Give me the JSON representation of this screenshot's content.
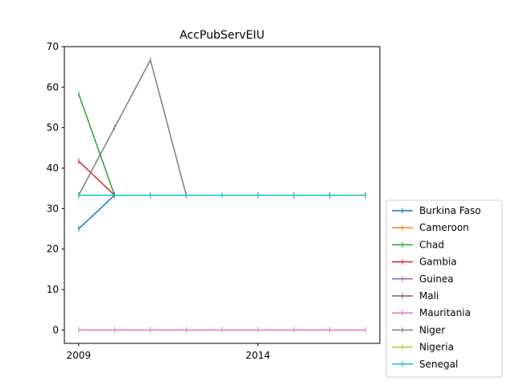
{
  "chart_data": {
    "type": "line",
    "title": "AccPubServEIU",
    "xlabel": "",
    "ylabel": "",
    "x": [
      2009,
      2010,
      2011,
      2012,
      2013,
      2014,
      2015,
      2016,
      2017
    ],
    "xlim": [
      2008.6,
      2017.4
    ],
    "ylim": [
      -3.3,
      70
    ],
    "xticks": [
      2009,
      2014
    ],
    "yticks": [
      0,
      10,
      20,
      30,
      40,
      50,
      60,
      70
    ],
    "grid": false,
    "legend_position": "lower-right-outside",
    "series": [
      {
        "name": "Burkina Faso",
        "color": "#1f77b4",
        "values": [
          25,
          33.3,
          33.3,
          33.3,
          33.3,
          33.3,
          33.3,
          33.3,
          33.3
        ]
      },
      {
        "name": "Cameroon",
        "color": "#ff7f0e",
        "values": [
          33.3,
          33.3,
          33.3,
          33.3,
          33.3,
          33.3,
          33.3,
          33.3,
          33.3
        ]
      },
      {
        "name": "Chad",
        "color": "#2ca02c",
        "values": [
          58.3,
          33.3,
          33.3,
          33.3,
          33.3,
          33.3,
          33.3,
          33.3,
          33.3
        ]
      },
      {
        "name": "Gambia",
        "color": "#d62728",
        "values": [
          41.7,
          33.3,
          33.3,
          33.3,
          33.3,
          33.3,
          33.3,
          33.3,
          33.3
        ]
      },
      {
        "name": "Guinea",
        "color": "#9467bd",
        "values": [
          33.3,
          33.3,
          33.3,
          33.3,
          33.3,
          33.3,
          33.3,
          33.3,
          33.3
        ]
      },
      {
        "name": "Mali",
        "color": "#8c564b",
        "values": [
          33.3,
          33.3,
          33.3,
          33.3,
          33.3,
          33.3,
          33.3,
          33.3,
          33.3
        ]
      },
      {
        "name": "Mauritania",
        "color": "#e377c2",
        "values": [
          0,
          0,
          0,
          0,
          0,
          0,
          0,
          0,
          0
        ]
      },
      {
        "name": "Niger",
        "color": "#7f7f7f",
        "values": [
          33.3,
          50,
          66.7,
          33.3,
          33.3,
          33.3,
          33.3,
          33.3,
          33.3
        ]
      },
      {
        "name": "Nigeria",
        "color": "#bcbd22",
        "values": [
          33.3,
          33.3,
          33.3,
          33.3,
          33.3,
          33.3,
          33.3,
          33.3,
          33.3
        ]
      },
      {
        "name": "Senegal",
        "color": "#17becf",
        "values": [
          33.3,
          33.3,
          33.3,
          33.3,
          33.3,
          33.3,
          33.3,
          33.3,
          33.3
        ]
      }
    ]
  }
}
